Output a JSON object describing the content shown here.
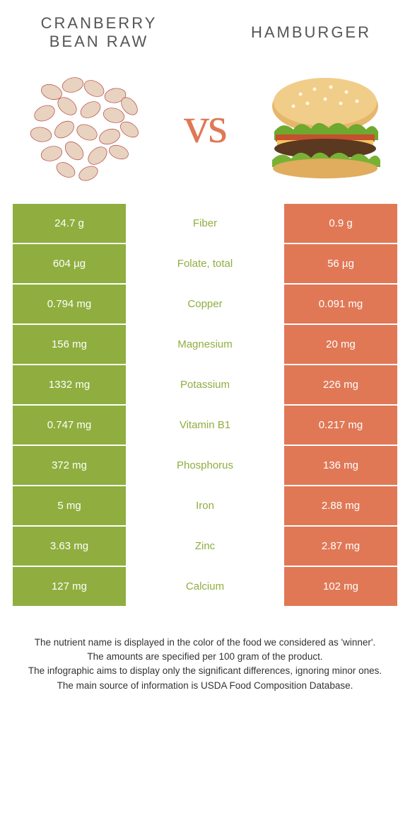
{
  "header": {
    "left_title": "CRANBERRY BEAN RAW",
    "right_title": "HAMBURGER",
    "vs": "vs"
  },
  "colors": {
    "left_bar": "#8fae3f",
    "right_bar": "#e07856",
    "nutrient_text": "#8fae3f"
  },
  "rows": [
    {
      "nutrient": "Fiber",
      "left": "24.7 g",
      "right": "0.9 g",
      "winner": "left"
    },
    {
      "nutrient": "Folate, total",
      "left": "604 µg",
      "right": "56 µg",
      "winner": "left"
    },
    {
      "nutrient": "Copper",
      "left": "0.794 mg",
      "right": "0.091 mg",
      "winner": "left"
    },
    {
      "nutrient": "Magnesium",
      "left": "156 mg",
      "right": "20 mg",
      "winner": "left"
    },
    {
      "nutrient": "Potassium",
      "left": "1332 mg",
      "right": "226 mg",
      "winner": "left"
    },
    {
      "nutrient": "Vitamin B1",
      "left": "0.747 mg",
      "right": "0.217 mg",
      "winner": "left"
    },
    {
      "nutrient": "Phosphorus",
      "left": "372 mg",
      "right": "136 mg",
      "winner": "left"
    },
    {
      "nutrient": "Iron",
      "left": "5 mg",
      "right": "2.88 mg",
      "winner": "left"
    },
    {
      "nutrient": "Zinc",
      "left": "3.63 mg",
      "right": "2.87 mg",
      "winner": "left"
    },
    {
      "nutrient": "Calcium",
      "left": "127 mg",
      "right": "102 mg",
      "winner": "left"
    }
  ],
  "footer": {
    "line1": "The nutrient name is displayed in the color of the food we considered as 'winner'.",
    "line2": "The amounts are specified per 100 gram of the product.",
    "line3": "The infographic aims to display only the significant differences, ignoring minor ones.",
    "line4": "The main source of information is USDA Food Composition Database."
  }
}
